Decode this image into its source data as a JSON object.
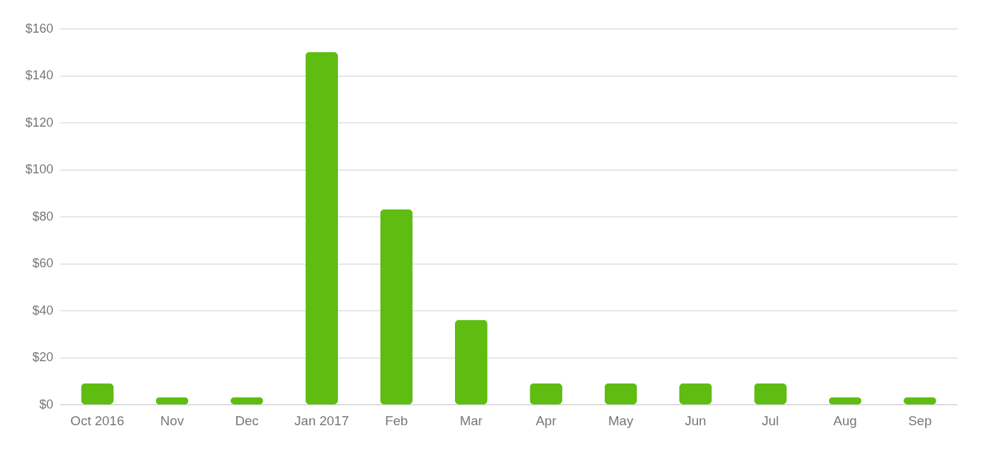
{
  "chart_data": {
    "type": "bar",
    "categories": [
      "Oct 2016",
      "Nov",
      "Dec",
      "Jan 2017",
      "Feb",
      "Mar",
      "Apr",
      "May",
      "Jun",
      "Jul",
      "Aug",
      "Sep"
    ],
    "values": [
      9,
      3,
      3,
      150,
      83,
      36,
      9,
      9,
      9,
      9,
      3,
      3
    ],
    "color": "#5fbd12",
    "ylim": [
      0,
      160
    ],
    "yticks": [
      {
        "value": 0,
        "label": "$0"
      },
      {
        "value": 20,
        "label": "$20"
      },
      {
        "value": 40,
        "label": "$40"
      },
      {
        "value": 60,
        "label": "$60"
      },
      {
        "value": 80,
        "label": "$80"
      },
      {
        "value": 100,
        "label": "$100"
      },
      {
        "value": 120,
        "label": "$120"
      },
      {
        "value": 140,
        "label": "$140"
      },
      {
        "value": 160,
        "label": "$160"
      }
    ],
    "grid": "y"
  }
}
